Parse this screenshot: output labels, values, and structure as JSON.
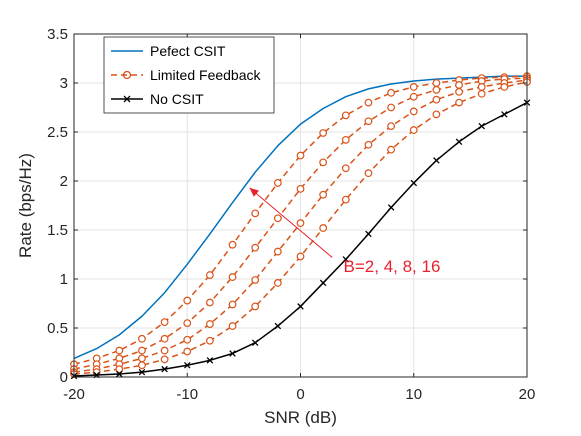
{
  "chart_data": {
    "type": "line",
    "title": "",
    "xlabel": "SNR (dB)",
    "ylabel": "Rate (bps/Hz)",
    "xlim": [
      -20,
      20
    ],
    "ylim": [
      0,
      3.5
    ],
    "xticks": [
      -20,
      -10,
      0,
      10,
      20
    ],
    "yticks": [
      0,
      0.5,
      1,
      1.5,
      2,
      2.5,
      3,
      3.5
    ],
    "grid": true,
    "legend_position": "top-left",
    "x": [
      -20,
      -18,
      -16,
      -14,
      -12,
      -10,
      -8,
      -6,
      -4,
      -2,
      0,
      2,
      4,
      6,
      8,
      10,
      12,
      14,
      16,
      18,
      20
    ],
    "series": [
      {
        "name": "Pefect CSIT",
        "legend": "Pefect CSIT",
        "color": "#0072BD",
        "style": "solid",
        "marker": "none",
        "values": [
          0.19,
          0.29,
          0.43,
          0.62,
          0.86,
          1.15,
          1.46,
          1.78,
          2.09,
          2.36,
          2.58,
          2.74,
          2.86,
          2.94,
          2.99,
          3.02,
          3.04,
          3.05,
          3.06,
          3.07,
          3.07
        ]
      },
      {
        "name": "Limited Feedback B=16",
        "legend": "Limited Feedback",
        "color": "#D95319",
        "style": "dashed",
        "marker": "circle",
        "values": [
          0.13,
          0.19,
          0.27,
          0.39,
          0.56,
          0.78,
          1.04,
          1.35,
          1.67,
          1.98,
          2.26,
          2.49,
          2.67,
          2.8,
          2.9,
          2.96,
          3.0,
          3.03,
          3.05,
          3.06,
          3.07
        ]
      },
      {
        "name": "Limited Feedback B=8",
        "legend": "",
        "color": "#D95319",
        "style": "dashed",
        "marker": "circle",
        "values": [
          0.08,
          0.13,
          0.19,
          0.27,
          0.39,
          0.55,
          0.76,
          1.02,
          1.32,
          1.62,
          1.92,
          2.19,
          2.42,
          2.61,
          2.75,
          2.86,
          2.93,
          2.98,
          3.02,
          3.04,
          3.05
        ]
      },
      {
        "name": "Limited Feedback B=4",
        "legend": "",
        "color": "#D95319",
        "style": "dashed",
        "marker": "circle",
        "values": [
          0.05,
          0.08,
          0.13,
          0.19,
          0.27,
          0.38,
          0.54,
          0.74,
          0.99,
          1.28,
          1.57,
          1.86,
          2.13,
          2.37,
          2.56,
          2.71,
          2.83,
          2.91,
          2.96,
          3.0,
          3.03
        ]
      },
      {
        "name": "Limited Feedback B=2",
        "legend": "",
        "color": "#D95319",
        "style": "dashed",
        "marker": "circle",
        "values": [
          0.03,
          0.05,
          0.08,
          0.12,
          0.18,
          0.26,
          0.37,
          0.52,
          0.72,
          0.96,
          1.23,
          1.52,
          1.81,
          2.08,
          2.32,
          2.52,
          2.68,
          2.8,
          2.89,
          2.96,
          3.01
        ]
      },
      {
        "name": "No CSIT",
        "legend": "No CSIT",
        "color": "#000000",
        "style": "solid",
        "marker": "x",
        "values": [
          0.01,
          0.02,
          0.03,
          0.05,
          0.08,
          0.12,
          0.17,
          0.24,
          0.35,
          0.52,
          0.72,
          0.96,
          1.2,
          1.46,
          1.73,
          1.98,
          2.21,
          2.4,
          2.56,
          2.68,
          2.8
        ]
      }
    ],
    "annotation": {
      "text": "B=2, 4, 8, 16",
      "color": "#E8212E",
      "arrow_from": [
        2.8,
        1.22
      ],
      "arrow_to": [
        -4.5,
        1.93
      ],
      "text_at": [
        3.8,
        1.07
      ]
    }
  }
}
